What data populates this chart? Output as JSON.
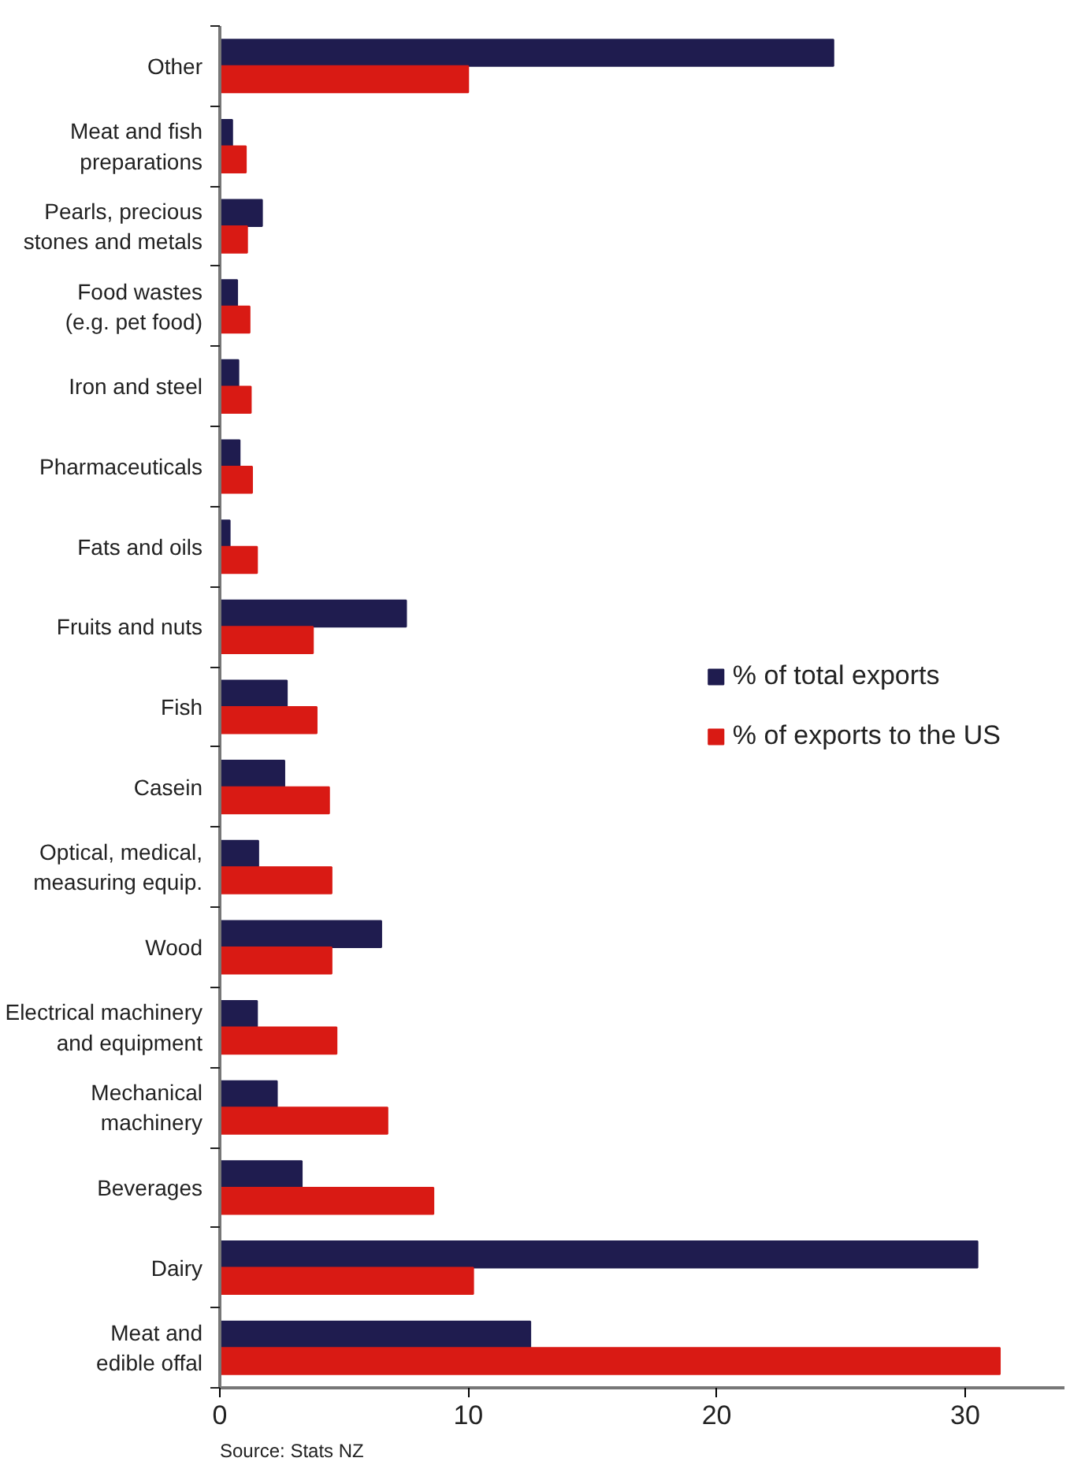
{
  "chart_data": {
    "type": "bar",
    "orientation": "horizontal",
    "categories": [
      "Other",
      "Meat and fish\npreparations",
      "Pearls, precious\nstones and metals",
      "Food wastes\n(e.g. pet food)",
      "Iron and steel",
      "Pharmaceuticals",
      "Fats and oils",
      "Fruits and nuts",
      "Fish",
      "Casein",
      "Optical, medical,\nmeasuring equip.",
      "Wood",
      "Electrical machinery\nand equipment",
      "Mechanical\nmachinery",
      "Beverages",
      "Dairy",
      "Meat and\nedible offal"
    ],
    "series": [
      {
        "name": "% of total exports",
        "color": "#1f1c4f",
        "values": [
          24.7,
          0.5,
          1.7,
          0.7,
          0.75,
          0.8,
          0.4,
          7.5,
          2.7,
          2.6,
          1.55,
          6.5,
          1.5,
          2.3,
          3.3,
          30.5,
          12.5
        ]
      },
      {
        "name": "% of exports to the US",
        "color": "#d91a14",
        "values": [
          10.0,
          1.05,
          1.1,
          1.2,
          1.25,
          1.3,
          1.5,
          3.75,
          3.9,
          4.4,
          4.5,
          4.5,
          4.7,
          6.75,
          8.6,
          10.2,
          31.4
        ]
      }
    ],
    "xlim": [
      0,
      34
    ],
    "xticks": [
      0,
      10,
      20,
      30
    ],
    "grid": false,
    "legend": "right",
    "annotations": [
      "Source: Stats NZ"
    ]
  }
}
